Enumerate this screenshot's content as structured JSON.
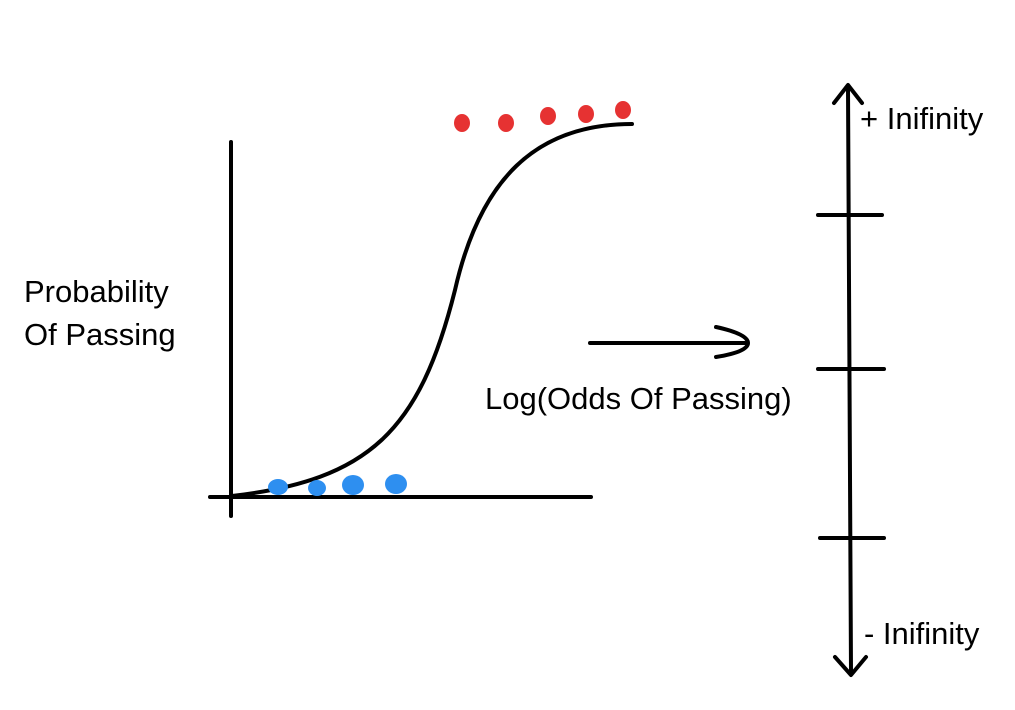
{
  "labels": {
    "y_axis": "Probability\nOf Passing",
    "transform": "Log(Odds Of Passing)",
    "positive_infinity": "+ Inifinity",
    "negative_infinity": "- Inifinity"
  },
  "colors": {
    "ink": "#000000",
    "fail_points": "#2e8ff0",
    "pass_points": "#e63232",
    "background": "#ffffff"
  },
  "curve": "sigmoid",
  "point_groups": {
    "fail_count": 4,
    "pass_count": 5
  },
  "log_odds_axis": {
    "tick_count": 3,
    "arrows": "both ends"
  }
}
